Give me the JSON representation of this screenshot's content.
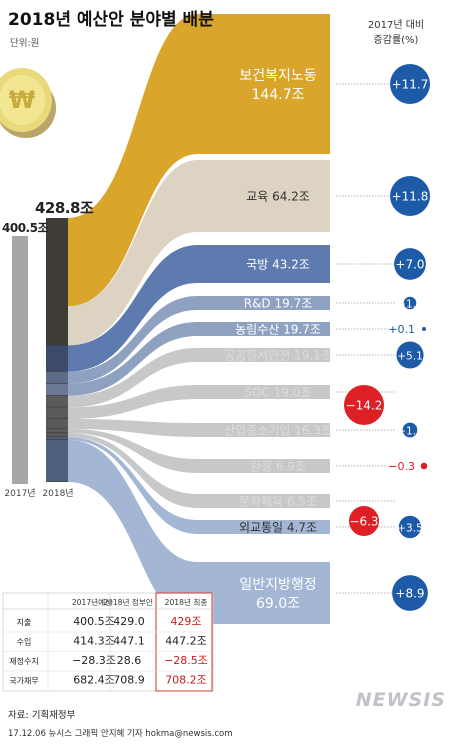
{
  "title": "2018년 예산안 분야별 배분",
  "unit": "단위:원",
  "change_header": [
    "2017년 대비",
    "증감률(%)"
  ],
  "colors": {
    "gold": "#d9a52b",
    "beige": "#ddd3c3",
    "blue_dark": "#5d7bae",
    "blue_mid": "#8ea1c1",
    "gray": "#c7c8c9",
    "blue_light": "#a3b6d4",
    "positive_dot": "#1d5aa8",
    "negative_dot": "#df1f26",
    "bar_2017": "#a6a6a6",
    "bar_2018": "#3f3b35"
  },
  "chart_data": {
    "type": "sankey",
    "total_2017": "400.5조",
    "total_2018": "428.8조",
    "x_labels": [
      "2017년",
      "2018년"
    ],
    "sectors": [
      {
        "name": "보건복지노동",
        "value": 144.7,
        "value_label": "144.7조",
        "change": 11.7,
        "change_label": "+11.7"
      },
      {
        "name": "교육",
        "value": 64.2,
        "value_label": "64.2조",
        "change": 11.8,
        "change_label": "+11.8"
      },
      {
        "name": "국방",
        "value": 43.2,
        "value_label": "43.2조",
        "change": 7.0,
        "change_label": "+7.0"
      },
      {
        "name": "R&D",
        "value": 19.7,
        "value_label": "19.7조",
        "change": 1.1,
        "change_label": "+1.1"
      },
      {
        "name": "농림수산",
        "value": 19.7,
        "value_label": "19.7조",
        "change": 0.1,
        "change_label": "+0.1"
      },
      {
        "name": "공공질서안전",
        "value": 19.1,
        "value_label": "19.1조",
        "change": 5.1,
        "change_label": "+5.1"
      },
      {
        "name": "SOC",
        "value": 19.0,
        "value_label": "19.0조",
        "change": -14.2,
        "change_label": "−14.2"
      },
      {
        "name": "산업중소기업",
        "value": 16.3,
        "value_label": "16.3조",
        "change": 1.5,
        "change_label": "+1.5"
      },
      {
        "name": "환경",
        "value": 6.9,
        "value_label": "6.9조",
        "change": -0.3,
        "change_label": "−0.3"
      },
      {
        "name": "문화체육",
        "value": 6.5,
        "value_label": "6.5조",
        "change": -6.3,
        "change_label": "−6.3"
      },
      {
        "name": "외교통일",
        "value": 4.7,
        "value_label": "4.7조",
        "change": 3.5,
        "change_label": "+3.5"
      },
      {
        "name": "일반지방행정",
        "value": 69.0,
        "value_label": "69.0조",
        "change": 8.9,
        "change_label": "+8.9"
      }
    ]
  },
  "table": {
    "headers": [
      "",
      "2017년예산",
      "2018년 정부안",
      "2018년 최종"
    ],
    "rows": [
      {
        "label": "지출",
        "v2017": "400.5조",
        "gov": "429.0",
        "final": "429조"
      },
      {
        "label": "수입",
        "v2017": "414.3조",
        "gov": "447.1",
        "final": "447.2조"
      },
      {
        "label": "재정수지",
        "v2017": "−28.3조",
        "gov": "28.6",
        "final": "−28.5조"
      },
      {
        "label": "국가채무",
        "v2017": "682.4조",
        "gov": "708.9",
        "final": "708.2조"
      }
    ]
  },
  "source": "자료: 기획재정부",
  "credit": "17.12.06 뉴시스 그래픽 안지혜 기자 hokma@newsis.com",
  "logo": "NEWSIS"
}
